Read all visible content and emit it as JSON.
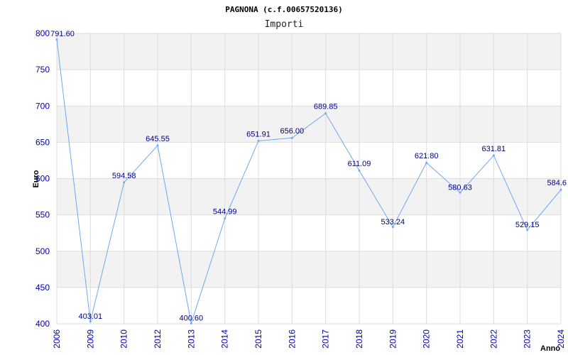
{
  "chart_data": {
    "type": "line",
    "title": "PAGNONA (c.f.00657520136)",
    "subtitle": "Importi",
    "xlabel": "Anno",
    "ylabel": "Euro",
    "ylim": [
      400,
      800
    ],
    "yticks": [
      400,
      450,
      500,
      550,
      600,
      650,
      700,
      750,
      800
    ],
    "grid": true,
    "categories": [
      "2006",
      "2009",
      "2010",
      "2012",
      "2013",
      "2014",
      "2015",
      "2016",
      "2017",
      "2018",
      "2019",
      "2020",
      "2021",
      "2022",
      "2023",
      "2024"
    ],
    "values": [
      791.6,
      403.01,
      594.58,
      645.55,
      400.6,
      544.99,
      651.91,
      656.0,
      689.85,
      611.09,
      533.24,
      621.8,
      580.63,
      631.81,
      529.15,
      584.6
    ],
    "labels": [
      "791.60",
      "403.01",
      "594.58",
      "645.55",
      "400.60",
      "544.99",
      "651.91",
      "656.00",
      "689.85",
      "611.09",
      "533.24",
      "621.80",
      "580.63",
      "631.81",
      "529.15",
      "584.6"
    ],
    "colors": {
      "line": "#6fa8f0",
      "band": "#f2f2f2",
      "grid": "#dddddd",
      "tick": "#0000aa",
      "data_label": "#000080"
    }
  }
}
